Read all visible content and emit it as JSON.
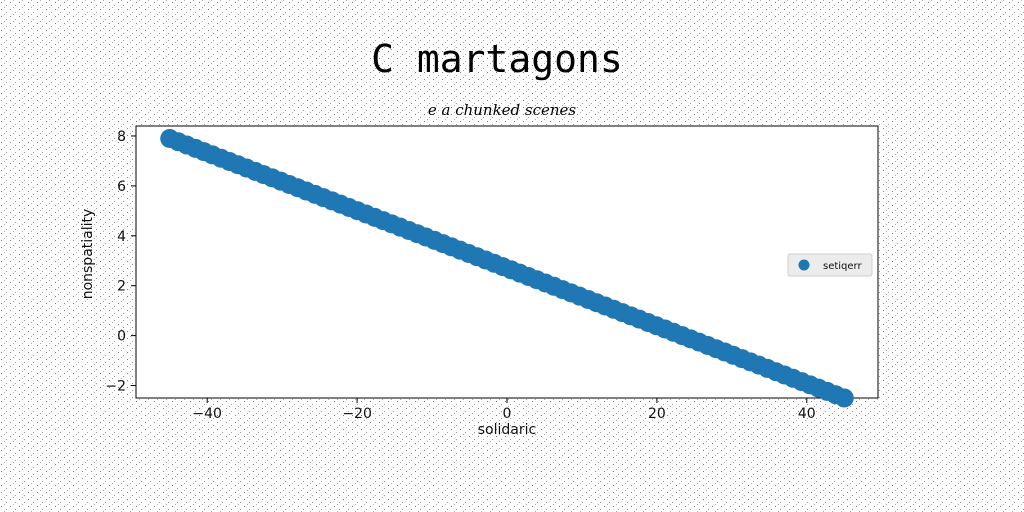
{
  "chart_data": {
    "type": "scatter",
    "title": "C martagons",
    "subtitle": "e a chunked scenes",
    "xlabel": "solidaric",
    "ylabel": "nonspatiality",
    "xlim": [
      -49.5,
      49.5
    ],
    "ylim": [
      -2.5,
      8.4
    ],
    "xticks": [
      -40,
      -20,
      0,
      20,
      40
    ],
    "xtick_labels": [
      "−40",
      "−20",
      "0",
      "20",
      "40"
    ],
    "yticks": [
      -2,
      0,
      2,
      4,
      6,
      8
    ],
    "ytick_labels": [
      "−2",
      "0",
      "2",
      "4",
      "6",
      "8"
    ],
    "grid": false,
    "legend_position": "center-right",
    "series": [
      {
        "name": "setiqerr",
        "color": "#1f77b4",
        "x_start": -45,
        "x_end": 45,
        "count": 80,
        "y_start": 7.9,
        "y_end": -2.5
      }
    ]
  }
}
